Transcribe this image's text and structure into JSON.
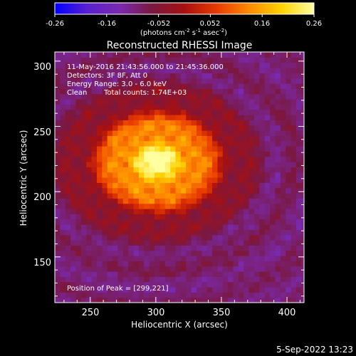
{
  "chart_data": {
    "type": "heatmap",
    "title": "Reconstructed RHESSI Image",
    "xlabel": "Heliocentric X (arcsec)",
    "ylabel": "Heliocentric Y (arcsec)",
    "xlim": [
      223,
      413
    ],
    "ylim": [
      115,
      307
    ],
    "xticks": [
      250,
      300,
      350,
      400
    ],
    "yticks": [
      150,
      200,
      250,
      300
    ],
    "colorbar": {
      "range": [
        -0.26,
        0.26
      ],
      "ticks": [
        "-0.26",
        "-0.16",
        "-0.052",
        "0.052",
        "0.16",
        "0.26"
      ],
      "units_main": "(photons cm",
      "units_sup1": "-2",
      "units_mid1": " s",
      "units_sup2": "-1",
      "units_mid2": " asec",
      "units_sup3": "-2",
      "units_end": ")",
      "colors": [
        "#0000ff",
        "#5a1fd0",
        "#7a2ab0",
        "#7a1840",
        "#a81010",
        "#e83a00",
        "#ff8a00",
        "#ffd200",
        "#ffffa0"
      ]
    },
    "peak": {
      "x": 299,
      "y": 221
    }
  },
  "annotations": {
    "time_range": "11-May-2016 21:43:56.000 to 21:45:36.000",
    "detectors": "Detectors: 3F 8F, Att 0",
    "energy": "Energy Range: 3.0 - 6.0 keV",
    "clean": "Clean",
    "total_counts": "Total counts: 1.74E+03",
    "peak_text": "Position of Peak = [299,221]"
  },
  "footer": {
    "timestamp": "5-Sep-2022 13:23"
  }
}
